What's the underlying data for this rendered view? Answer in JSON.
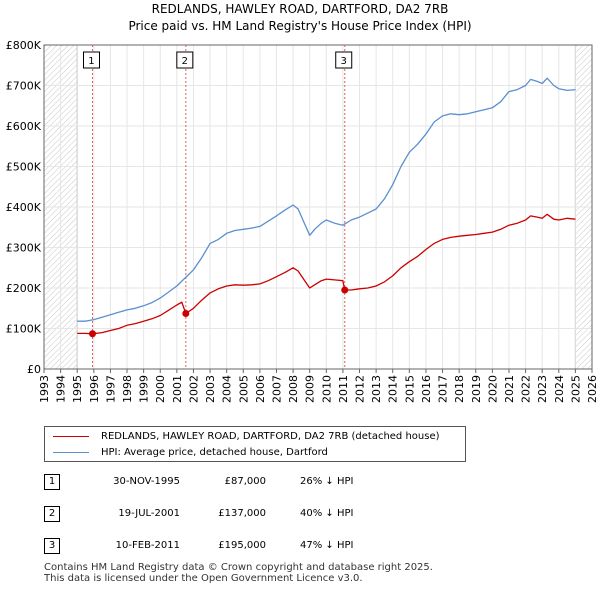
{
  "chart_data": {
    "type": "line",
    "title": "REDLANDS, HAWLEY ROAD, DARTFORD, DA2 7RB",
    "subtitle": "Price paid vs. HM Land Registry's House Price Index (HPI)",
    "xlim": [
      1993,
      2026
    ],
    "ylim": [
      0,
      800000
    ],
    "x_ticks": [
      "1993",
      "1994",
      "1995",
      "1996",
      "1997",
      "1998",
      "1999",
      "2000",
      "2001",
      "2002",
      "2003",
      "2004",
      "2005",
      "2006",
      "2007",
      "2008",
      "2009",
      "2010",
      "2011",
      "2012",
      "2013",
      "2014",
      "2015",
      "2016",
      "2017",
      "2018",
      "2019",
      "2020",
      "2021",
      "2022",
      "2023",
      "2024",
      "2025",
      "2026"
    ],
    "y_ticks": [
      {
        "value": 0,
        "label": "£0"
      },
      {
        "value": 100000,
        "label": "£100K"
      },
      {
        "value": 200000,
        "label": "£200K"
      },
      {
        "value": 300000,
        "label": "£300K"
      },
      {
        "value": 400000,
        "label": "£400K"
      },
      {
        "value": 500000,
        "label": "£500K"
      },
      {
        "value": 600000,
        "label": "£600K"
      },
      {
        "value": 700000,
        "label": "£700K"
      },
      {
        "value": 800000,
        "label": "£800K"
      }
    ],
    "hatched_ranges": [
      [
        1993,
        1995.0
      ],
      [
        2025.0,
        2026
      ]
    ],
    "series": [
      {
        "name": "HPI: Average price, detached house, Dartford",
        "color": "#5a8fd0",
        "x": [
          1995.0,
          1995.5,
          1996.0,
          1996.5,
          1997.0,
          1997.5,
          1998.0,
          1998.5,
          1999.0,
          1999.5,
          2000.0,
          2000.5,
          2001.0,
          2001.5,
          2002.0,
          2002.5,
          2003.0,
          2003.5,
          2004.0,
          2004.5,
          2005.0,
          2005.5,
          2006.0,
          2006.5,
          2007.0,
          2007.5,
          2008.0,
          2008.3,
          2008.7,
          2009.0,
          2009.3,
          2009.7,
          2010.0,
          2010.5,
          2011.0,
          2011.5,
          2012.0,
          2012.5,
          2013.0,
          2013.5,
          2014.0,
          2014.5,
          2015.0,
          2015.5,
          2016.0,
          2016.5,
          2017.0,
          2017.5,
          2018.0,
          2018.5,
          2019.0,
          2019.5,
          2020.0,
          2020.5,
          2021.0,
          2021.5,
          2022.0,
          2022.3,
          2022.7,
          2023.0,
          2023.3,
          2023.7,
          2024.0,
          2024.5,
          2025.0
        ],
        "values": [
          118000,
          118000,
          122000,
          128000,
          134000,
          140000,
          146000,
          150000,
          156000,
          164000,
          175000,
          190000,
          205000,
          225000,
          245000,
          275000,
          310000,
          320000,
          335000,
          342000,
          345000,
          348000,
          352000,
          365000,
          378000,
          392000,
          405000,
          395000,
          358000,
          330000,
          345000,
          360000,
          368000,
          360000,
          355000,
          368000,
          375000,
          385000,
          395000,
          420000,
          455000,
          500000,
          535000,
          555000,
          580000,
          610000,
          625000,
          630000,
          628000,
          630000,
          635000,
          640000,
          645000,
          660000,
          685000,
          690000,
          700000,
          715000,
          710000,
          705000,
          718000,
          700000,
          692000,
          688000,
          690000
        ]
      },
      {
        "name": "REDLANDS, HAWLEY ROAD, DARTFORD, DA2 7RB (detached house)",
        "color": "#cc0000",
        "x": [
          1995.0,
          1995.5,
          1995.92,
          1996.5,
          1997.0,
          1997.5,
          1998.0,
          1998.5,
          1999.0,
          1999.5,
          2000.0,
          2000.5,
          2001.0,
          2001.3,
          2001.54,
          2002.0,
          2002.5,
          2003.0,
          2003.5,
          2004.0,
          2004.5,
          2005.0,
          2005.5,
          2006.0,
          2006.5,
          2007.0,
          2007.5,
          2008.0,
          2008.3,
          2008.7,
          2009.0,
          2009.3,
          2009.7,
          2010.0,
          2010.5,
          2011.0,
          2011.11,
          2011.5,
          2012.0,
          2012.5,
          2013.0,
          2013.5,
          2014.0,
          2014.5,
          2015.0,
          2015.5,
          2016.0,
          2016.5,
          2017.0,
          2017.5,
          2018.0,
          2018.5,
          2019.0,
          2019.5,
          2020.0,
          2020.5,
          2021.0,
          2021.5,
          2022.0,
          2022.3,
          2022.7,
          2023.0,
          2023.3,
          2023.7,
          2024.0,
          2024.5,
          2025.0
        ],
        "values": [
          88000,
          88000,
          87000,
          90000,
          95000,
          100000,
          108000,
          112000,
          118000,
          124000,
          132000,
          145000,
          158000,
          165000,
          137000,
          150000,
          170000,
          188000,
          198000,
          205000,
          208000,
          207000,
          208000,
          210000,
          218000,
          228000,
          238000,
          250000,
          242000,
          218000,
          200000,
          208000,
          218000,
          222000,
          220000,
          218000,
          195000,
          195000,
          198000,
          200000,
          205000,
          215000,
          230000,
          250000,
          265000,
          278000,
          295000,
          310000,
          320000,
          325000,
          328000,
          330000,
          332000,
          335000,
          338000,
          345000,
          355000,
          360000,
          368000,
          378000,
          375000,
          372000,
          382000,
          370000,
          368000,
          372000,
          370000
        ]
      }
    ],
    "sales": [
      {
        "label": "1",
        "x": 1995.92,
        "value": 87000
      },
      {
        "label": "2",
        "x": 2001.54,
        "value": 137000
      },
      {
        "label": "3",
        "x": 2011.11,
        "value": 195000
      }
    ]
  },
  "legend": {
    "property": "REDLANDS, HAWLEY ROAD, DARTFORD, DA2 7RB (detached house)",
    "hpi": "HPI: Average price, detached house, Dartford",
    "property_color": "#cc0000",
    "hpi_color": "#5a8fd0"
  },
  "sales_table": [
    {
      "num": "1",
      "date": "30-NOV-1995",
      "price": "£87,000",
      "hpi": "26% ↓ HPI"
    },
    {
      "num": "2",
      "date": "19-JUL-2001",
      "price": "£137,000",
      "hpi": "40% ↓ HPI"
    },
    {
      "num": "3",
      "date": "10-FEB-2011",
      "price": "£195,000",
      "hpi": "47% ↓ HPI"
    }
  ],
  "footer": {
    "line1": "Contains HM Land Registry data © Crown copyright and database right 2025.",
    "line2": "This data is licensed under the Open Government Licence v3.0."
  }
}
